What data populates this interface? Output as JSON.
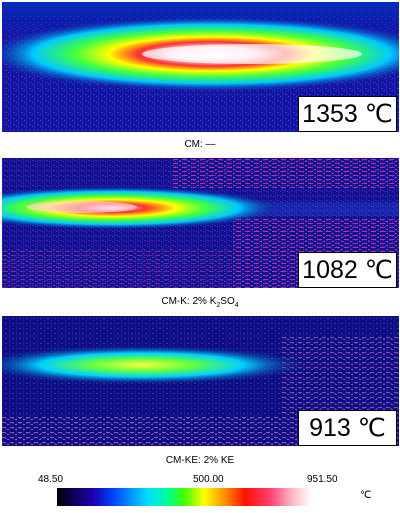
{
  "panels": [
    {
      "caption_prefix": "CM: —",
      "caption_chem": "",
      "caption_sub": "",
      "caption_after": "",
      "temperature": "1353 ℃"
    },
    {
      "caption_prefix": "CM-K: 2% ",
      "caption_chem": "K",
      "caption_sub": "2",
      "caption_after": "SO",
      "caption_sub2": "4",
      "temperature": "1082 ℃"
    },
    {
      "caption_prefix": "CM-KE: 2% KE",
      "caption_chem": "",
      "caption_sub": "",
      "caption_after": "",
      "temperature": "913 ℃"
    }
  ],
  "scale": {
    "min": "48.50",
    "mid": "500.00",
    "max": "951.50",
    "unit": "℃"
  },
  "colors": {
    "background": "#1a1aa0",
    "flame_outer": "#00c8ff",
    "flame_mid": "#40ff40",
    "flame_core": "#ffffff",
    "noise": "#ff3c96"
  }
}
